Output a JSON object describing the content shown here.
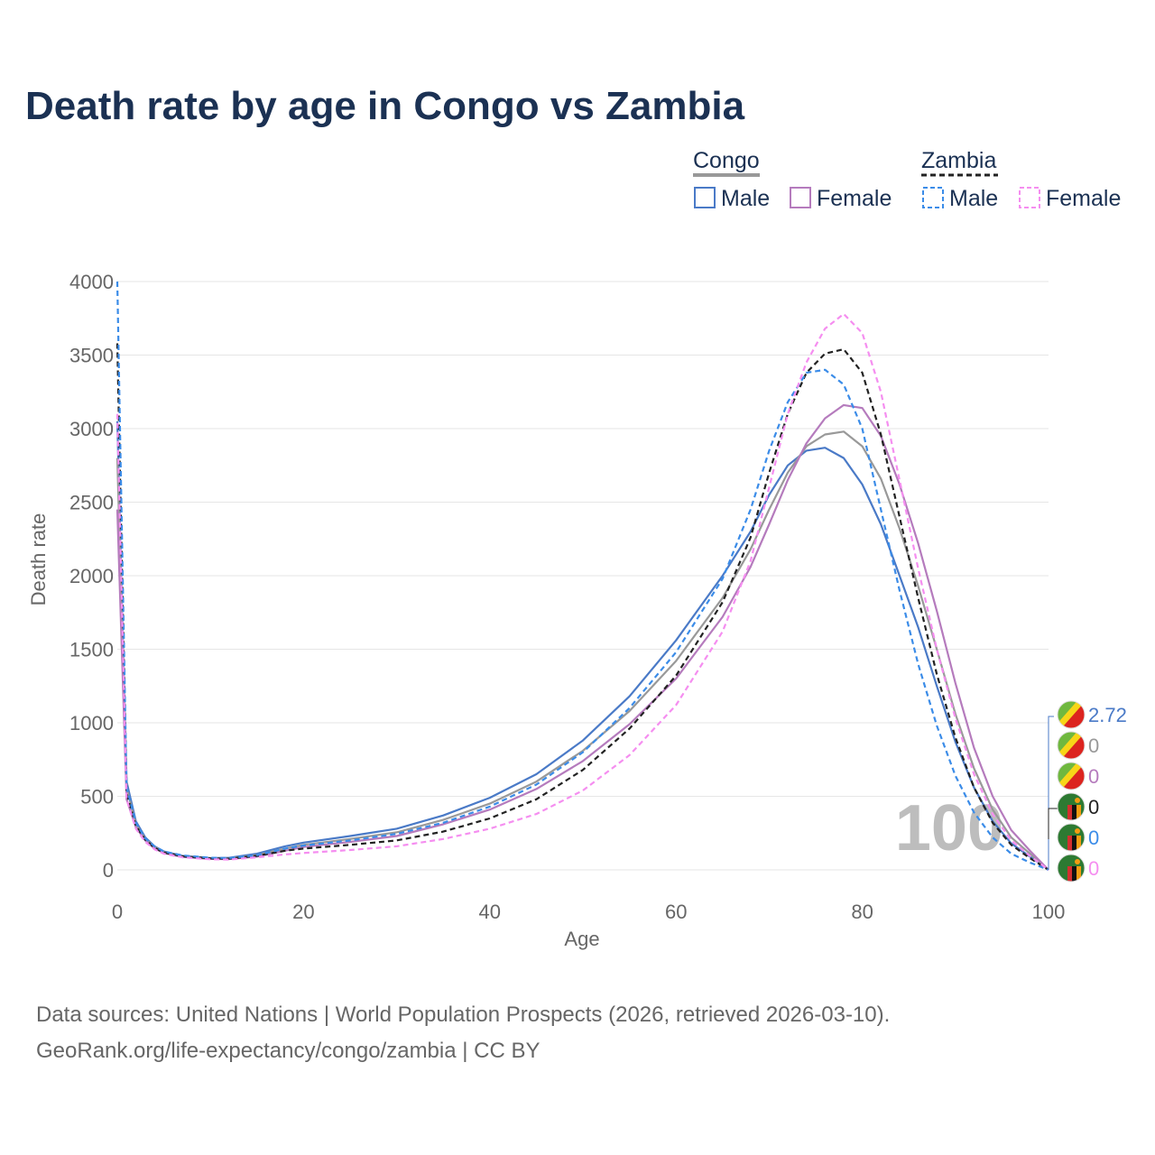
{
  "title": "Death rate by age in Congo vs Zambia",
  "legend": {
    "groups": [
      {
        "name": "Congo",
        "color": "#999999",
        "style": "solid"
      },
      {
        "name": "Zambia",
        "color": "#222222",
        "style": "dashed"
      }
    ],
    "items": [
      {
        "label": "Male",
        "color": "#4a7ac7",
        "style": "solid"
      },
      {
        "label": "Female",
        "color": "#b57bbd",
        "style": "solid"
      },
      {
        "label": "Male",
        "color": "#3b8ce8",
        "style": "dashed"
      },
      {
        "label": "Female",
        "color": "#f58ef0",
        "style": "dashed"
      }
    ]
  },
  "end_values": [
    {
      "value": "2.72",
      "color": "#4a7ac7",
      "flag": "congo-flag-icon"
    },
    {
      "value": "0",
      "color": "#999999",
      "flag": "congo-flag-icon"
    },
    {
      "value": "0",
      "color": "#b57bbd",
      "flag": "congo-flag-icon"
    },
    {
      "value": "0",
      "color": "#222222",
      "flag": "zambia-flag-icon"
    },
    {
      "value": "0",
      "color": "#3b8ce8",
      "flag": "zambia-flag-icon"
    },
    {
      "value": "0",
      "color": "#f58ef0",
      "flag": "zambia-flag-icon"
    }
  ],
  "age_watermark": "100",
  "source_line1": "Data sources: United Nations | World Population Prospects (2026, retrieved 2026-03-10).",
  "source_line2": "GeoRank.org/life-expectancy/congo/zambia | CC BY",
  "chart_data": {
    "type": "line",
    "title": "Death rate by age in Congo vs Zambia",
    "xlabel": "Age",
    "ylabel": "Death rate",
    "xlim": [
      0,
      100
    ],
    "ylim": [
      0,
      4000
    ],
    "xticks": [
      0,
      20,
      40,
      60,
      80,
      100
    ],
    "yticks": [
      0,
      500,
      1000,
      1500,
      2000,
      2500,
      3000,
      3500,
      4000
    ],
    "grid": true,
    "series": [
      {
        "name": "Congo Male",
        "color": "#4a7ac7",
        "dash": false,
        "points": [
          [
            0,
            3050
          ],
          [
            1,
            600
          ],
          [
            2,
            330
          ],
          [
            3,
            220
          ],
          [
            4,
            160
          ],
          [
            5,
            125
          ],
          [
            7,
            95
          ],
          [
            10,
            80
          ],
          [
            12,
            82
          ],
          [
            15,
            110
          ],
          [
            18,
            160
          ],
          [
            20,
            185
          ],
          [
            25,
            230
          ],
          [
            30,
            280
          ],
          [
            35,
            370
          ],
          [
            40,
            490
          ],
          [
            45,
            650
          ],
          [
            50,
            880
          ],
          [
            55,
            1180
          ],
          [
            60,
            1560
          ],
          [
            65,
            2000
          ],
          [
            68,
            2300
          ],
          [
            70,
            2550
          ],
          [
            72,
            2750
          ],
          [
            74,
            2850
          ],
          [
            76,
            2870
          ],
          [
            78,
            2800
          ],
          [
            80,
            2620
          ],
          [
            82,
            2350
          ],
          [
            84,
            2000
          ],
          [
            86,
            1650
          ],
          [
            88,
            1250
          ],
          [
            90,
            870
          ],
          [
            92,
            560
          ],
          [
            94,
            330
          ],
          [
            96,
            180
          ],
          [
            98,
            90
          ],
          [
            100,
            2.72
          ]
        ]
      },
      {
        "name": "Congo Both",
        "color": "#999999",
        "dash": false,
        "points": [
          [
            0,
            2800
          ],
          [
            1,
            560
          ],
          [
            2,
            310
          ],
          [
            3,
            210
          ],
          [
            4,
            155
          ],
          [
            5,
            120
          ],
          [
            7,
            92
          ],
          [
            10,
            78
          ],
          [
            12,
            78
          ],
          [
            15,
            100
          ],
          [
            18,
            145
          ],
          [
            20,
            170
          ],
          [
            25,
            210
          ],
          [
            30,
            255
          ],
          [
            35,
            340
          ],
          [
            40,
            450
          ],
          [
            45,
            600
          ],
          [
            50,
            810
          ],
          [
            55,
            1080
          ],
          [
            60,
            1420
          ],
          [
            65,
            1850
          ],
          [
            68,
            2180
          ],
          [
            70,
            2450
          ],
          [
            72,
            2700
          ],
          [
            74,
            2880
          ],
          [
            76,
            2960
          ],
          [
            78,
            2980
          ],
          [
            80,
            2880
          ],
          [
            82,
            2660
          ],
          [
            84,
            2320
          ],
          [
            86,
            1930
          ],
          [
            88,
            1500
          ],
          [
            90,
            1060
          ],
          [
            92,
            690
          ],
          [
            94,
            410
          ],
          [
            96,
            220
          ],
          [
            98,
            110
          ],
          [
            100,
            0
          ]
        ]
      },
      {
        "name": "Congo Female",
        "color": "#b57bbd",
        "dash": false,
        "points": [
          [
            0,
            2450
          ],
          [
            1,
            480
          ],
          [
            2,
            290
          ],
          [
            3,
            200
          ],
          [
            4,
            145
          ],
          [
            5,
            115
          ],
          [
            7,
            88
          ],
          [
            10,
            74
          ],
          [
            12,
            73
          ],
          [
            15,
            90
          ],
          [
            18,
            130
          ],
          [
            20,
            155
          ],
          [
            25,
            190
          ],
          [
            30,
            230
          ],
          [
            35,
            310
          ],
          [
            40,
            410
          ],
          [
            45,
            550
          ],
          [
            50,
            740
          ],
          [
            55,
            990
          ],
          [
            60,
            1300
          ],
          [
            65,
            1720
          ],
          [
            68,
            2060
          ],
          [
            70,
            2350
          ],
          [
            72,
            2650
          ],
          [
            74,
            2900
          ],
          [
            76,
            3070
          ],
          [
            78,
            3160
          ],
          [
            80,
            3140
          ],
          [
            82,
            2950
          ],
          [
            84,
            2620
          ],
          [
            86,
            2220
          ],
          [
            88,
            1760
          ],
          [
            90,
            1270
          ],
          [
            92,
            830
          ],
          [
            94,
            500
          ],
          [
            96,
            270
          ],
          [
            98,
            130
          ],
          [
            100,
            0
          ]
        ]
      },
      {
        "name": "Zambia Both",
        "color": "#222222",
        "dash": true,
        "points": [
          [
            0,
            3580
          ],
          [
            1,
            520
          ],
          [
            2,
            300
          ],
          [
            3,
            205
          ],
          [
            4,
            150
          ],
          [
            5,
            118
          ],
          [
            7,
            92
          ],
          [
            10,
            78
          ],
          [
            12,
            76
          ],
          [
            15,
            95
          ],
          [
            18,
            130
          ],
          [
            20,
            145
          ],
          [
            25,
            170
          ],
          [
            30,
            200
          ],
          [
            35,
            260
          ],
          [
            40,
            350
          ],
          [
            45,
            480
          ],
          [
            50,
            680
          ],
          [
            55,
            960
          ],
          [
            60,
            1320
          ],
          [
            65,
            1820
          ],
          [
            68,
            2260
          ],
          [
            70,
            2700
          ],
          [
            72,
            3100
          ],
          [
            74,
            3380
          ],
          [
            76,
            3510
          ],
          [
            78,
            3540
          ],
          [
            80,
            3380
          ],
          [
            82,
            2960
          ],
          [
            84,
            2400
          ],
          [
            86,
            1850
          ],
          [
            88,
            1330
          ],
          [
            90,
            900
          ],
          [
            92,
            560
          ],
          [
            94,
            320
          ],
          [
            96,
            170
          ],
          [
            98,
            80
          ],
          [
            100,
            0
          ]
        ]
      },
      {
        "name": "Zambia Male",
        "color": "#3b8ce8",
        "dash": true,
        "points": [
          [
            0,
            4000
          ],
          [
            1,
            560
          ],
          [
            2,
            320
          ],
          [
            3,
            215
          ],
          [
            4,
            160
          ],
          [
            5,
            125
          ],
          [
            7,
            98
          ],
          [
            10,
            82
          ],
          [
            12,
            80
          ],
          [
            15,
            100
          ],
          [
            18,
            145
          ],
          [
            20,
            165
          ],
          [
            25,
            200
          ],
          [
            30,
            245
          ],
          [
            35,
            320
          ],
          [
            40,
            430
          ],
          [
            45,
            580
          ],
          [
            50,
            800
          ],
          [
            55,
            1100
          ],
          [
            60,
            1480
          ],
          [
            65,
            1980
          ],
          [
            68,
            2450
          ],
          [
            70,
            2850
          ],
          [
            72,
            3180
          ],
          [
            74,
            3380
          ],
          [
            76,
            3400
          ],
          [
            78,
            3300
          ],
          [
            80,
            3000
          ],
          [
            82,
            2450
          ],
          [
            84,
            1900
          ],
          [
            86,
            1400
          ],
          [
            88,
            980
          ],
          [
            90,
            640
          ],
          [
            92,
            390
          ],
          [
            94,
            220
          ],
          [
            96,
            110
          ],
          [
            98,
            50
          ],
          [
            100,
            0
          ]
        ]
      },
      {
        "name": "Zambia Female",
        "color": "#f58ef0",
        "dash": true,
        "points": [
          [
            0,
            3100
          ],
          [
            1,
            480
          ],
          [
            2,
            280
          ],
          [
            3,
            190
          ],
          [
            4,
            140
          ],
          [
            5,
            110
          ],
          [
            7,
            85
          ],
          [
            10,
            72
          ],
          [
            12,
            70
          ],
          [
            15,
            85
          ],
          [
            18,
            105
          ],
          [
            20,
            115
          ],
          [
            25,
            135
          ],
          [
            30,
            160
          ],
          [
            35,
            210
          ],
          [
            40,
            280
          ],
          [
            45,
            380
          ],
          [
            50,
            540
          ],
          [
            55,
            780
          ],
          [
            60,
            1120
          ],
          [
            65,
            1620
          ],
          [
            68,
            2100
          ],
          [
            70,
            2600
          ],
          [
            72,
            3100
          ],
          [
            74,
            3450
          ],
          [
            76,
            3680
          ],
          [
            78,
            3780
          ],
          [
            80,
            3650
          ],
          [
            82,
            3250
          ],
          [
            84,
            2650
          ],
          [
            86,
            2050
          ],
          [
            88,
            1500
          ],
          [
            90,
            1030
          ],
          [
            92,
            650
          ],
          [
            94,
            380
          ],
          [
            96,
            200
          ],
          [
            98,
            95
          ],
          [
            100,
            0
          ]
        ]
      }
    ]
  }
}
